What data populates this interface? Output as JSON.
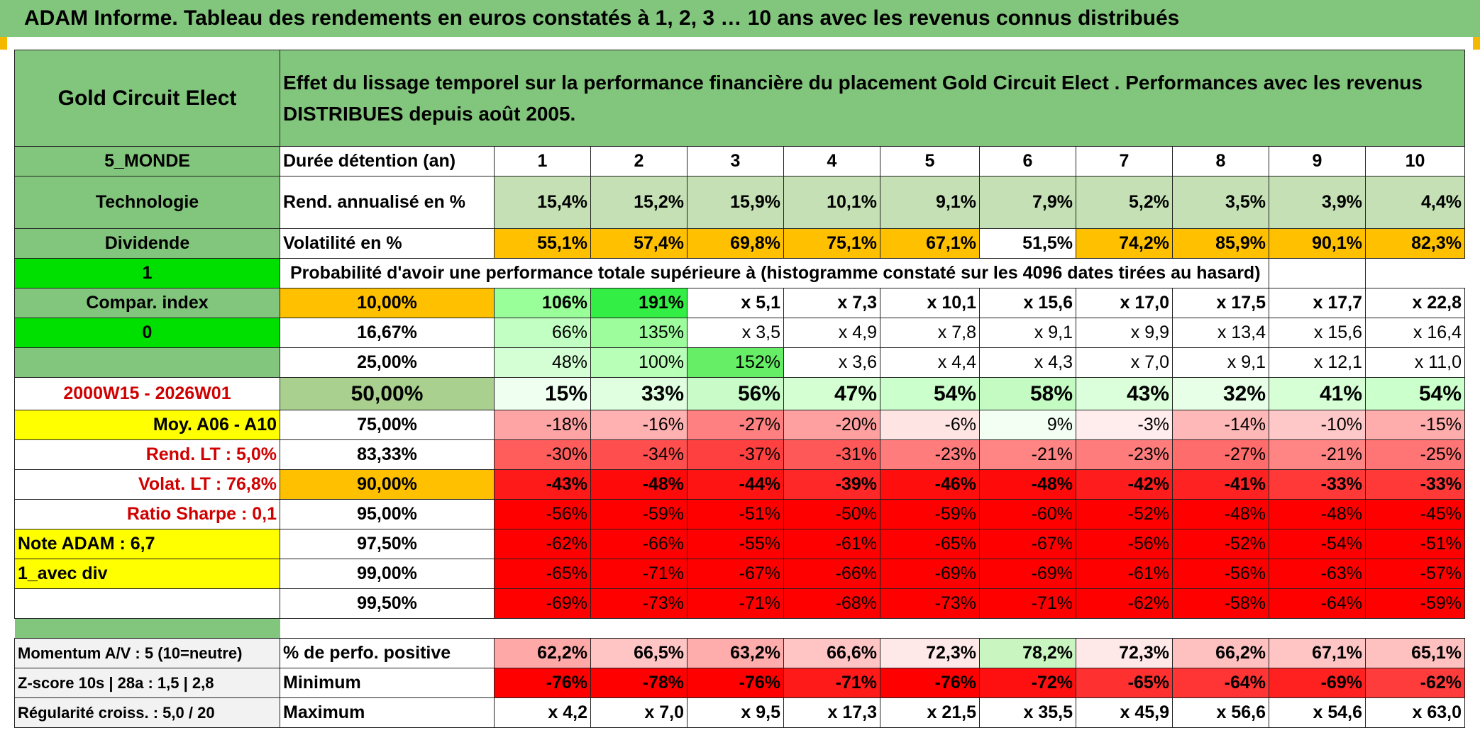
{
  "report_title": "ADAM Informe. Tableau des rendements en euros constatés à 1, 2, 3 … 10 ans avec les revenus connus distribués",
  "fund_name": "Gold Circuit Elect",
  "header_text": "Effet du lissage temporel sur la performance financière du placement Gold Circuit Elect . Performances avec les revenus DISTRIBUES depuis août 2005.",
  "side": {
    "zone": "5_MONDE",
    "sector": "Technologie",
    "income": "Dividende",
    "flag1": "1",
    "compar_index": "Compar. index",
    "flag0": "0",
    "blank1": "",
    "period": "2000W15 - 2026W01",
    "moy": "Moy. A06 - A10",
    "rend_lt": "Rend. LT :   5,0%",
    "volat_lt": "Volat. LT :   76,8%",
    "sharpe": "Ratio Sharpe :   0,1",
    "note": "Note ADAM : 6,7",
    "avec_div": "1_avec div",
    "blank2": ""
  },
  "duration_label": "Durée détention (an)",
  "years": [
    "1",
    "2",
    "3",
    "4",
    "5",
    "6",
    "7",
    "8",
    "9",
    "10"
  ],
  "rend_label": "Rend. annualisé en %",
  "rend": [
    "15,4%",
    "15,2%",
    "15,9%",
    "10,1%",
    "9,1%",
    "7,9%",
    "5,2%",
    "3,5%",
    "3,9%",
    "4,4%"
  ],
  "vol_label": "Volatilité en %",
  "vol": [
    "55,1%",
    "57,4%",
    "69,8%",
    "75,1%",
    "67,1%",
    "51,5%",
    "74,2%",
    "85,9%",
    "90,1%",
    "82,3%"
  ],
  "prob_text": "Probabilité d'avoir une performance totale supérieure à (histogramme constaté sur les 4096 dates tirées au hasard)",
  "prob_rows": [
    {
      "p": "10,00%",
      "v": [
        "106%",
        "191%",
        "x 5,1",
        "x 7,3",
        "x 10,1",
        "x 15,6",
        "x 17,0",
        "x 17,5",
        "x 17,7",
        "x 22,8"
      ]
    },
    {
      "p": "16,67%",
      "v": [
        "66%",
        "135%",
        "x 3,5",
        "x 4,9",
        "x 7,8",
        "x 9,1",
        "x 9,9",
        "x 13,4",
        "x 15,6",
        "x 16,4"
      ]
    },
    {
      "p": "25,00%",
      "v": [
        "48%",
        "100%",
        "152%",
        "x 3,6",
        "x 4,4",
        "x 4,3",
        "x 7,0",
        "x 9,1",
        "x 12,1",
        "x 11,0"
      ]
    },
    {
      "p": "50,00%",
      "v": [
        "15%",
        "33%",
        "56%",
        "47%",
        "54%",
        "58%",
        "43%",
        "32%",
        "41%",
        "54%"
      ]
    },
    {
      "p": "75,00%",
      "v": [
        "-18%",
        "-16%",
        "-27%",
        "-20%",
        "-6%",
        "9%",
        "-3%",
        "-14%",
        "-10%",
        "-15%"
      ]
    },
    {
      "p": "83,33%",
      "v": [
        "-30%",
        "-34%",
        "-37%",
        "-31%",
        "-23%",
        "-21%",
        "-23%",
        "-27%",
        "-21%",
        "-25%"
      ]
    },
    {
      "p": "90,00%",
      "v": [
        "-43%",
        "-48%",
        "-44%",
        "-39%",
        "-46%",
        "-48%",
        "-42%",
        "-41%",
        "-33%",
        "-33%"
      ]
    },
    {
      "p": "95,00%",
      "v": [
        "-56%",
        "-59%",
        "-51%",
        "-50%",
        "-59%",
        "-60%",
        "-52%",
        "-48%",
        "-48%",
        "-45%"
      ]
    },
    {
      "p": "97,50%",
      "v": [
        "-62%",
        "-66%",
        "-55%",
        "-61%",
        "-65%",
        "-67%",
        "-56%",
        "-52%",
        "-54%",
        "-51%"
      ]
    },
    {
      "p": "99,00%",
      "v": [
        "-65%",
        "-71%",
        "-67%",
        "-66%",
        "-69%",
        "-69%",
        "-61%",
        "-56%",
        "-63%",
        "-57%"
      ]
    },
    {
      "p": "99,50%",
      "v": [
        "-69%",
        "-73%",
        "-71%",
        "-68%",
        "-73%",
        "-71%",
        "-62%",
        "-58%",
        "-64%",
        "-59%"
      ]
    }
  ],
  "bottom": {
    "momentum": "Momentum A/V : 5 (10=neutre)",
    "zscore": "Z-score 10s | 28a : 1,5 | 2,8",
    "regularite": "Régularité croiss. : 5,0 / 20",
    "pos_label": "% de perfo. positive",
    "pos": [
      "62,2%",
      "66,5%",
      "63,2%",
      "66,6%",
      "72,3%",
      "78,2%",
      "72,3%",
      "66,2%",
      "67,1%",
      "65,1%"
    ],
    "min_label": "Minimum",
    "min": [
      "-76%",
      "-78%",
      "-76%",
      "-71%",
      "-76%",
      "-72%",
      "-65%",
      "-64%",
      "-69%",
      "-62%"
    ],
    "max_label": "Maximum",
    "max": [
      "x 4,2",
      "x 7,0",
      "x 9,5",
      "x 17,3",
      "x 21,5",
      "x 35,5",
      "x 45,9",
      "x 56,6",
      "x 54,6",
      "x 63,0"
    ]
  },
  "colors": {
    "header_green": "#82c57c",
    "bright_green": "#00e000",
    "yellow": "#ffff00",
    "orange": "#ffc000",
    "label_red": "#d00000"
  },
  "cell_colors": {
    "rend": [
      "#c4e0b4",
      "#c4e0b4",
      "#c4e0b4",
      "#c4e0b4",
      "#c4e0b4",
      "#c4e0b4",
      "#c4e0b4",
      "#c4e0b4",
      "#c4e0b4",
      "#c4e0b4"
    ],
    "vol": [
      "#ffc000",
      "#ffc000",
      "#ffc000",
      "#ffc000",
      "#ffc000",
      "#ffffff",
      "#ffc000",
      "#ffc000",
      "#ffc000",
      "#ffc000"
    ],
    "prob": [
      [
        "#99ff99",
        "#33ee44",
        "#ffffff",
        "#ffffff",
        "#ffffff",
        "#ffffff",
        "#ffffff",
        "#ffffff",
        "#ffffff",
        "#ffffff"
      ],
      [
        "#c2ffc2",
        "#9dfd9d",
        "#ffffff",
        "#ffffff",
        "#ffffff",
        "#ffffff",
        "#ffffff",
        "#ffffff",
        "#ffffff",
        "#ffffff"
      ],
      [
        "#d4ffd4",
        "#b8ffb8",
        "#66ee66",
        "#ffffff",
        "#ffffff",
        "#ffffff",
        "#ffffff",
        "#ffffff",
        "#ffffff",
        "#ffffff"
      ],
      [
        "#effff0",
        "#dfffe0",
        "#c8fbc8",
        "#d3ffd3",
        "#cbffcb",
        "#c3fbc3",
        "#dbffdb",
        "#e6ffe6",
        "#d6ffd6",
        "#cbffcb"
      ],
      [
        "#ffa4a4",
        "#ffb0b0",
        "#ff8080",
        "#ffa0a0",
        "#ffe4e4",
        "#f2fff2",
        "#ffecec",
        "#ffb8b8",
        "#ffc8c8",
        "#ffacac"
      ],
      [
        "#ff5c5c",
        "#ff4e4e",
        "#ff4040",
        "#ff5858",
        "#ff7c7c",
        "#ff8484",
        "#ff7c7c",
        "#ff6c6c",
        "#ff8484",
        "#ff7474"
      ],
      [
        "#ff1a1a",
        "#ff0a0a",
        "#ff1414",
        "#ff2828",
        "#ff0e0e",
        "#ff0a0a",
        "#ff1c1c",
        "#ff2222",
        "#ff3838",
        "#ff3838"
      ],
      [
        "#ff0000",
        "#ff0000",
        "#ff0000",
        "#ff0000",
        "#ff0000",
        "#ff0000",
        "#ff0000",
        "#ff0000",
        "#ff0000",
        "#ff0000"
      ],
      [
        "#ff0000",
        "#ff0000",
        "#ff0000",
        "#ff0000",
        "#ff0000",
        "#ff0000",
        "#ff0000",
        "#ff0000",
        "#ff0000",
        "#ff0000"
      ],
      [
        "#ff0000",
        "#ff0000",
        "#ff0000",
        "#ff0000",
        "#ff0000",
        "#ff0000",
        "#ff0000",
        "#ff0000",
        "#ff0000",
        "#ff0000"
      ],
      [
        "#ff0000",
        "#ff0000",
        "#ff0000",
        "#ff0000",
        "#ff0000",
        "#ff0000",
        "#ff0000",
        "#ff0000",
        "#ff0000",
        "#ff0000"
      ]
    ],
    "pos": [
      "#ffa8a8",
      "#ffc4c4",
      "#ffacac",
      "#ffc4c4",
      "#ffe8e8",
      "#c8f5c0",
      "#ffe8e8",
      "#ffc0c0",
      "#ffc4c4",
      "#ffc0c0"
    ],
    "min": [
      "#ff0000",
      "#ff0000",
      "#ff0000",
      "#ff1a1a",
      "#ff0000",
      "#ff1010",
      "#ff3030",
      "#ff3434",
      "#ff2020",
      "#ff3c3c"
    ],
    "max": [
      "#ffffff",
      "#ffffff",
      "#ffffff",
      "#ffffff",
      "#ffffff",
      "#ffffff",
      "#ffffff",
      "#ffffff",
      "#ffffff",
      "#ffffff"
    ]
  }
}
